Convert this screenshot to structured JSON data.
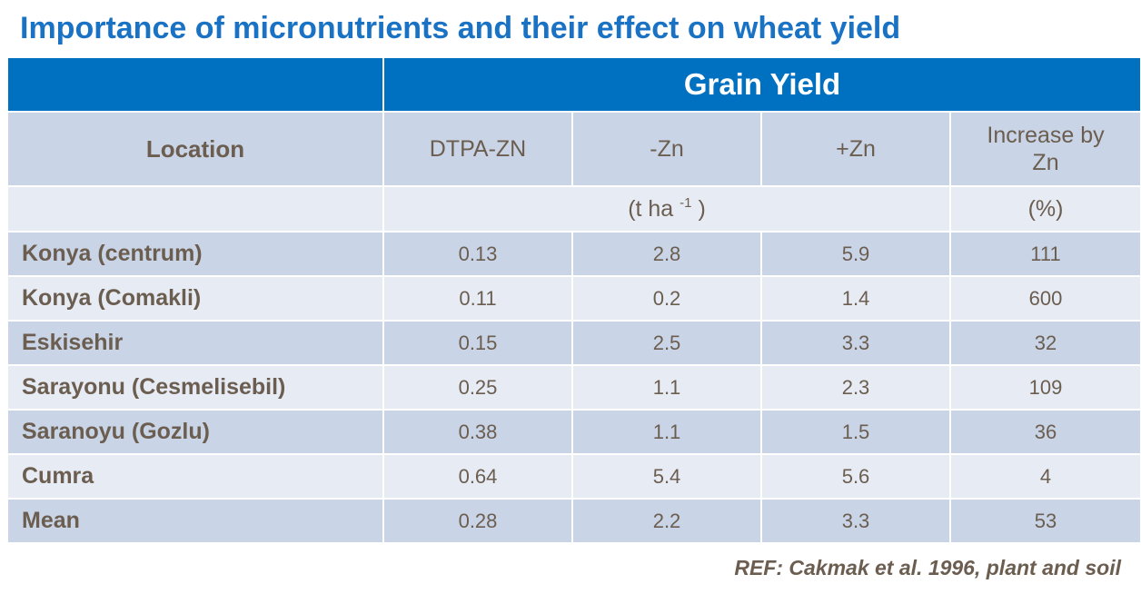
{
  "title": "Importance of micronutrients and their effect on wheat yield",
  "table": {
    "group_header": "Grain Yield",
    "columns": {
      "location": "Location",
      "dtpa": "DTPA-ZN",
      "minus_zn": "-Zn",
      "plus_zn": "+Zn",
      "increase": "Increase by Zn"
    },
    "units": {
      "yield_prefix": "(t ha ",
      "yield_sup": "-1",
      "yield_suffix": " )",
      "increase": "(%)"
    },
    "rows": [
      {
        "location": "Konya (centrum)",
        "dtpa": "0.13",
        "minus_zn": "2.8",
        "plus_zn": "5.9",
        "increase": "111"
      },
      {
        "location": "Konya (Comakli)",
        "dtpa": "0.11",
        "minus_zn": "0.2",
        "plus_zn": "1.4",
        "increase": "600"
      },
      {
        "location": "Eskisehir",
        "dtpa": "0.15",
        "minus_zn": "2.5",
        "plus_zn": "3.3",
        "increase": "32"
      },
      {
        "location": "Sarayonu (Cesmelisebil)",
        "dtpa": "0.25",
        "minus_zn": "1.1",
        "plus_zn": "2.3",
        "increase": "109"
      },
      {
        "location": "Saranoyu (Gozlu)",
        "dtpa": "0.38",
        "minus_zn": "1.1",
        "plus_zn": "1.5",
        "increase": "36"
      },
      {
        "location": "Cumra",
        "dtpa": "0.64",
        "minus_zn": "5.4",
        "plus_zn": "5.6",
        "increase": "4"
      },
      {
        "location": "Mean",
        "dtpa": "0.28",
        "minus_zn": "2.2",
        "plus_zn": "3.3",
        "increase": "53"
      }
    ]
  },
  "reference": "REF: Cakmak et al. 1996, plant and soil",
  "colors": {
    "title": "#1a72c4",
    "header_band": "#0070c0",
    "row_dark": "#c9d4e6",
    "row_light": "#e7ebf4",
    "text": "#6b5e50"
  }
}
